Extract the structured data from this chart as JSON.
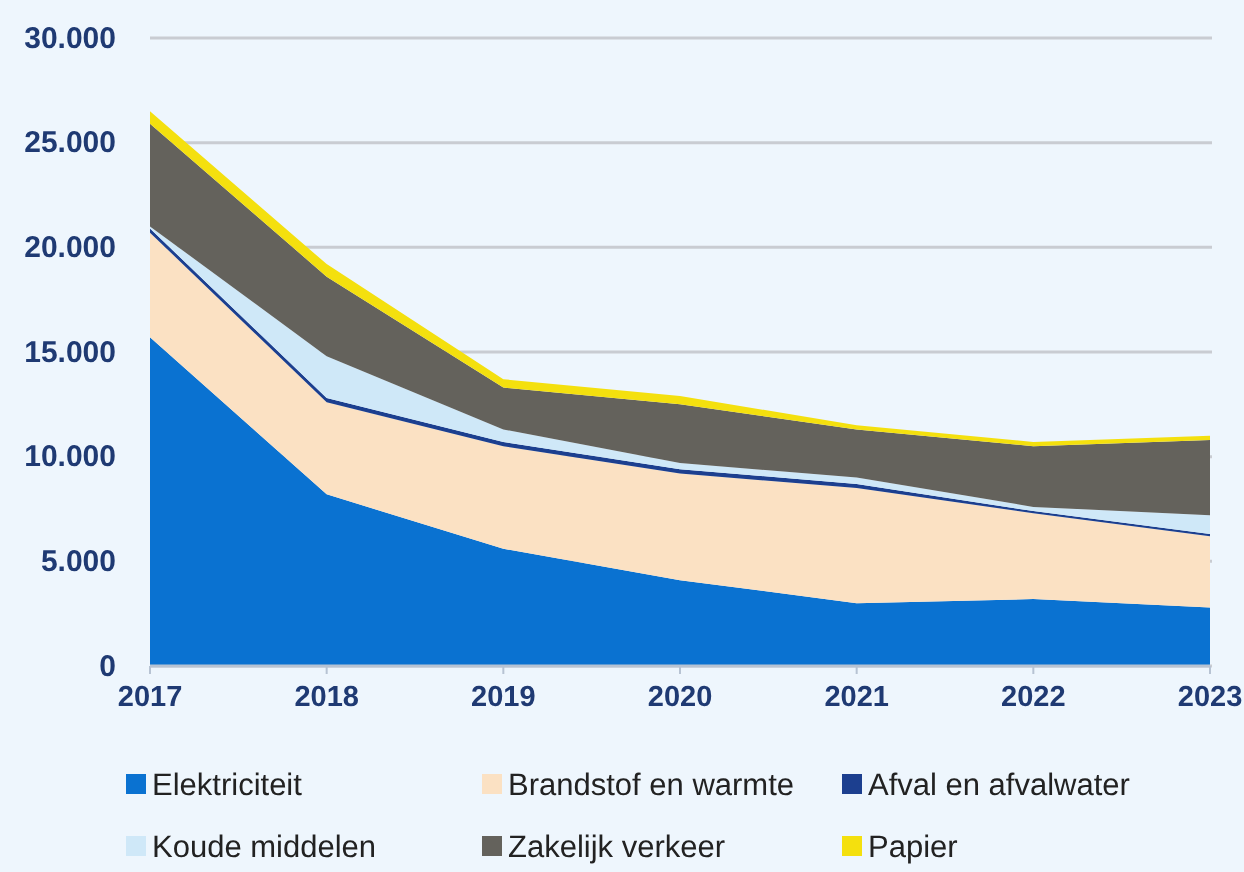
{
  "chart_data": {
    "type": "area",
    "stacked": true,
    "x": [
      2017,
      2018,
      2019,
      2020,
      2021,
      2022,
      2023
    ],
    "xlim": [
      2017,
      2023
    ],
    "xticks": [
      2017,
      2018,
      2019,
      2020,
      2021,
      2022,
      2023
    ],
    "ylim": [
      0,
      30000
    ],
    "yticks": [
      0,
      {
        "value": 5000,
        "label": "5.000"
      },
      {
        "value": 10000,
        "label": "10.000"
      },
      {
        "value": 15000,
        "label": "15.000"
      },
      {
        "value": 20000,
        "label": "20.000"
      },
      {
        "value": 25000,
        "label": "25.000"
      },
      {
        "value": 30000,
        "label": "30.000"
      }
    ],
    "grid": "y",
    "legend": "bottom",
    "series": [
      {
        "name": "Elektriciteit",
        "color": "#0a72d1",
        "values": [
          15700,
          8200,
          5600,
          4100,
          3000,
          3200,
          2800
        ]
      },
      {
        "name": "Brandstof en warmte",
        "color": "#fbe1c3",
        "values": [
          5000,
          4400,
          4900,
          5100,
          5500,
          4100,
          3400
        ]
      },
      {
        "name": "Afval en afvalwater",
        "color": "#1c3f8f",
        "values": [
          200,
          200,
          200,
          200,
          200,
          100,
          100
        ]
      },
      {
        "name": "Koude middelen",
        "color": "#cfe8f8",
        "values": [
          100,
          2000,
          600,
          300,
          300,
          200,
          900
        ]
      },
      {
        "name": "Zakelijk verkeer",
        "color": "#64625c",
        "values": [
          4900,
          3800,
          2000,
          2800,
          2300,
          2900,
          3600
        ]
      },
      {
        "name": "Papier",
        "color": "#f4e00e",
        "values": [
          600,
          600,
          400,
          400,
          200,
          200,
          200
        ]
      }
    ]
  }
}
